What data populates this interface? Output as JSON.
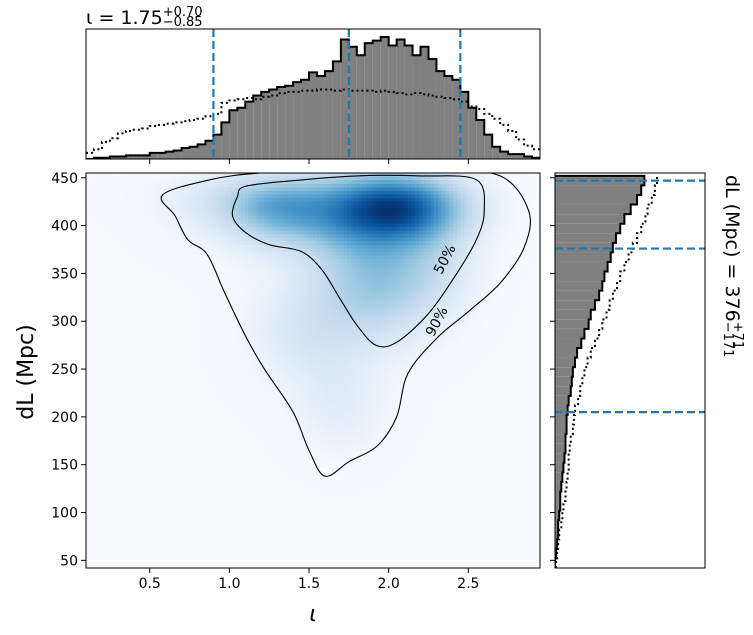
{
  "chart_data": [
    {
      "panel": "top-marginal",
      "type": "histogram",
      "title": "ι = 1.75",
      "title_superscript": "+0.70",
      "title_subscript": "−0.85",
      "x_range": [
        0.1,
        2.95
      ],
      "bins": [
        0.1,
        0.15,
        0.2,
        0.25,
        0.3,
        0.35,
        0.4,
        0.45,
        0.5,
        0.55,
        0.6,
        0.65,
        0.7,
        0.75,
        0.8,
        0.85,
        0.9,
        0.95,
        1.0,
        1.05,
        1.1,
        1.15,
        1.2,
        1.25,
        1.3,
        1.35,
        1.4,
        1.45,
        1.5,
        1.55,
        1.6,
        1.65,
        1.7,
        1.75,
        1.8,
        1.85,
        1.9,
        1.95,
        2.0,
        2.05,
        2.1,
        2.15,
        2.2,
        2.25,
        2.3,
        2.35,
        2.4,
        2.45,
        2.5,
        2.55,
        2.6,
        2.65,
        2.7,
        2.75,
        2.8,
        2.85,
        2.9,
        2.95
      ],
      "posterior_counts": [
        0,
        1,
        1,
        2,
        2,
        3,
        3,
        3,
        5,
        5,
        6,
        7,
        9,
        10,
        12,
        15,
        20,
        30,
        40,
        42,
        47,
        52,
        55,
        57,
        59,
        60,
        63,
        65,
        71,
        68,
        72,
        80,
        98,
        92,
        85,
        95,
        97,
        100,
        93,
        98,
        93,
        85,
        92,
        82,
        72,
        68,
        65,
        55,
        42,
        32,
        20,
        10,
        6,
        4,
        4,
        2,
        1
      ],
      "prior_counts": [
        5,
        8,
        14,
        17,
        21,
        23,
        24,
        25,
        27,
        28,
        29,
        30,
        31,
        32,
        33,
        35,
        37,
        46,
        48,
        49,
        50,
        49,
        51,
        52,
        54,
        55,
        55,
        56,
        56,
        57,
        57,
        56,
        57,
        56,
        56,
        56,
        55,
        56,
        55,
        54,
        53,
        54,
        53,
        52,
        51,
        50,
        49,
        47,
        43,
        41,
        37,
        33,
        28,
        23,
        16,
        11,
        8
      ],
      "credible_lines": [
        0.9,
        1.75,
        2.45
      ]
    },
    {
      "panel": "main-2d",
      "type": "heatmap",
      "xlabel": "ι",
      "ylabel": "dL (Mpc)",
      "xlim": [
        0.1,
        2.95
      ],
      "ylim": [
        42,
        455
      ],
      "xticks": [
        "0.5",
        "1.0",
        "1.5",
        "2.0",
        "2.5"
      ],
      "yticks": [
        "50",
        "100",
        "150",
        "200",
        "250",
        "300",
        "350",
        "400",
        "450"
      ],
      "density_blobs": [
        {
          "x": 2.06,
          "y": 420,
          "sx": 0.28,
          "sy": 24,
          "w": 1.0
        },
        {
          "x": 1.6,
          "y": 412,
          "sx": 0.45,
          "sy": 30,
          "w": 0.55
        },
        {
          "x": 1.92,
          "y": 345,
          "sx": 0.26,
          "sy": 45,
          "w": 0.55
        },
        {
          "x": 1.3,
          "y": 420,
          "sx": 0.22,
          "sy": 20,
          "w": 0.35
        },
        {
          "x": 1.48,
          "y": 290,
          "sx": 0.25,
          "sy": 40,
          "w": 0.22
        },
        {
          "x": 1.7,
          "y": 210,
          "sx": 0.2,
          "sy": 35,
          "w": 0.15
        },
        {
          "x": 1.0,
          "y": 430,
          "sx": 0.35,
          "sy": 18,
          "w": 0.12
        },
        {
          "x": 2.3,
          "y": 360,
          "sx": 0.2,
          "sy": 40,
          "w": 0.18
        }
      ],
      "contours": [
        {
          "label": "50%",
          "label_pos": [
            2.35,
            365
          ],
          "points": [
            [
              1.05,
              430
            ],
            [
              1.1,
              441
            ],
            [
              1.4,
              447
            ],
            [
              1.8,
              452
            ],
            [
              2.2,
              452
            ],
            [
              2.55,
              448
            ],
            [
              2.6,
              415
            ],
            [
              2.55,
              385
            ],
            [
              2.42,
              348
            ],
            [
              2.25,
              308
            ],
            [
              2.05,
              278
            ],
            [
              1.92,
              275
            ],
            [
              1.8,
              296
            ],
            [
              1.7,
              322
            ],
            [
              1.58,
              354
            ],
            [
              1.45,
              373
            ],
            [
              1.25,
              380
            ],
            [
              1.1,
              393
            ],
            [
              1.02,
              410
            ]
          ]
        },
        {
          "label": "90%",
          "label_pos": [
            2.3,
            300
          ],
          "points": [
            [
              0.58,
              432
            ],
            [
              0.88,
              448
            ],
            [
              1.2,
              455
            ],
            [
              1.7,
              457
            ],
            [
              2.3,
              457
            ],
            [
              2.7,
              452
            ],
            [
              2.88,
              415
            ],
            [
              2.85,
              377
            ],
            [
              2.7,
              340
            ],
            [
              2.5,
              310
            ],
            [
              2.3,
              282
            ],
            [
              2.12,
              245
            ],
            [
              2.05,
              200
            ],
            [
              1.93,
              170
            ],
            [
              1.75,
              153
            ],
            [
              1.6,
              138
            ],
            [
              1.5,
              165
            ],
            [
              1.4,
              205
            ],
            [
              1.22,
              250
            ],
            [
              1.1,
              285
            ],
            [
              0.97,
              330
            ],
            [
              0.86,
              370
            ],
            [
              0.74,
              385
            ],
            [
              0.66,
              410
            ]
          ]
        }
      ]
    },
    {
      "panel": "right-marginal",
      "type": "histogram",
      "title": "dL (Mpc) = 376",
      "title_superscript": "+71",
      "title_subscript": "−171",
      "y_range": [
        42,
        455
      ],
      "bins": [
        42,
        52,
        62,
        72,
        82,
        92,
        102,
        112,
        122,
        132,
        142,
        152,
        162,
        172,
        182,
        192,
        202,
        212,
        222,
        232,
        242,
        252,
        262,
        272,
        282,
        292,
        302,
        312,
        322,
        332,
        342,
        352,
        362,
        372,
        382,
        392,
        402,
        412,
        422,
        432,
        442,
        452
      ],
      "posterior_counts": [
        0,
        1,
        2,
        3,
        3,
        4,
        5,
        5,
        6,
        7,
        8,
        9,
        10,
        10,
        11,
        11,
        12,
        13,
        15,
        16,
        17,
        19,
        21,
        25,
        28,
        32,
        34,
        38,
        42,
        45,
        47,
        50,
        53,
        55,
        58,
        62,
        66,
        72,
        78,
        82,
        85
      ],
      "prior_counts": [
        1,
        2,
        3,
        4,
        6,
        7,
        8,
        10,
        11,
        12,
        13,
        13,
        14,
        15,
        17,
        18,
        19,
        22,
        24,
        26,
        28,
        31,
        34,
        38,
        42,
        45,
        49,
        52,
        55,
        59,
        62,
        66,
        70,
        74,
        78,
        82,
        86,
        88,
        92,
        95,
        97
      ],
      "credible_lines": [
        205,
        376,
        447
      ]
    }
  ]
}
